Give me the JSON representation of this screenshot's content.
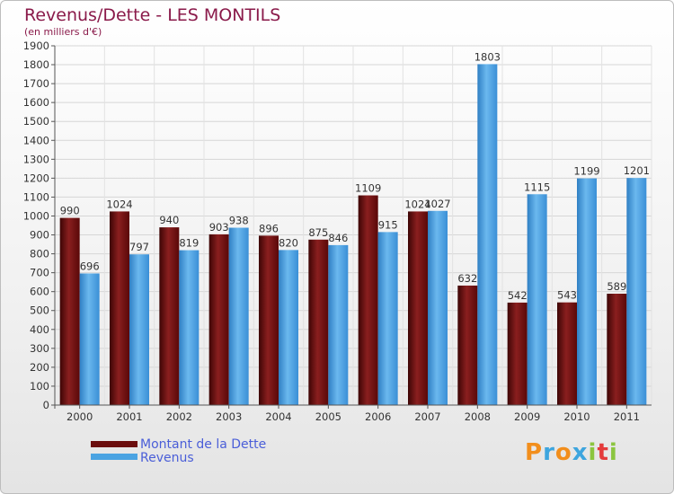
{
  "title": "Revenus/Dette - LES MONTILS",
  "subtitle": "(en milliers d'€)",
  "logo": {
    "letters": [
      "P",
      "r",
      "o",
      "x",
      "i",
      "t",
      "i"
    ],
    "colors": [
      "#f28e1c",
      "#3da5de",
      "#f28e1c",
      "#3da5de",
      "#8bc53f",
      "#e43b3b",
      "#8bc53f"
    ]
  },
  "legend": [
    {
      "label": "Montant de la Dette",
      "color": "#6b0d0d"
    },
    {
      "label": "Revenus",
      "color": "#4aa3e2"
    }
  ],
  "chart_data": {
    "type": "bar",
    "title": "Revenus/Dette - LES MONTILS",
    "ylabel": "(en milliers d'€)",
    "xlabel": "",
    "ylim": [
      0,
      1900
    ],
    "ytick_step": 100,
    "grid": true,
    "categories": [
      "2000",
      "2001",
      "2002",
      "2003",
      "2004",
      "2005",
      "2006",
      "2007",
      "2008",
      "2009",
      "2010",
      "2011"
    ],
    "series": [
      {
        "name": "Montant de la Dette",
        "color": "#6b0d0d",
        "values": [
          990,
          1024,
          940,
          903,
          896,
          875,
          1109,
          1024,
          632,
          542,
          543,
          589
        ]
      },
      {
        "name": "Revenus",
        "color": "#4aa3e2",
        "values": [
          696,
          797,
          819,
          938,
          820,
          846,
          915,
          1027,
          1803,
          1115,
          1199,
          1201
        ]
      }
    ]
  }
}
